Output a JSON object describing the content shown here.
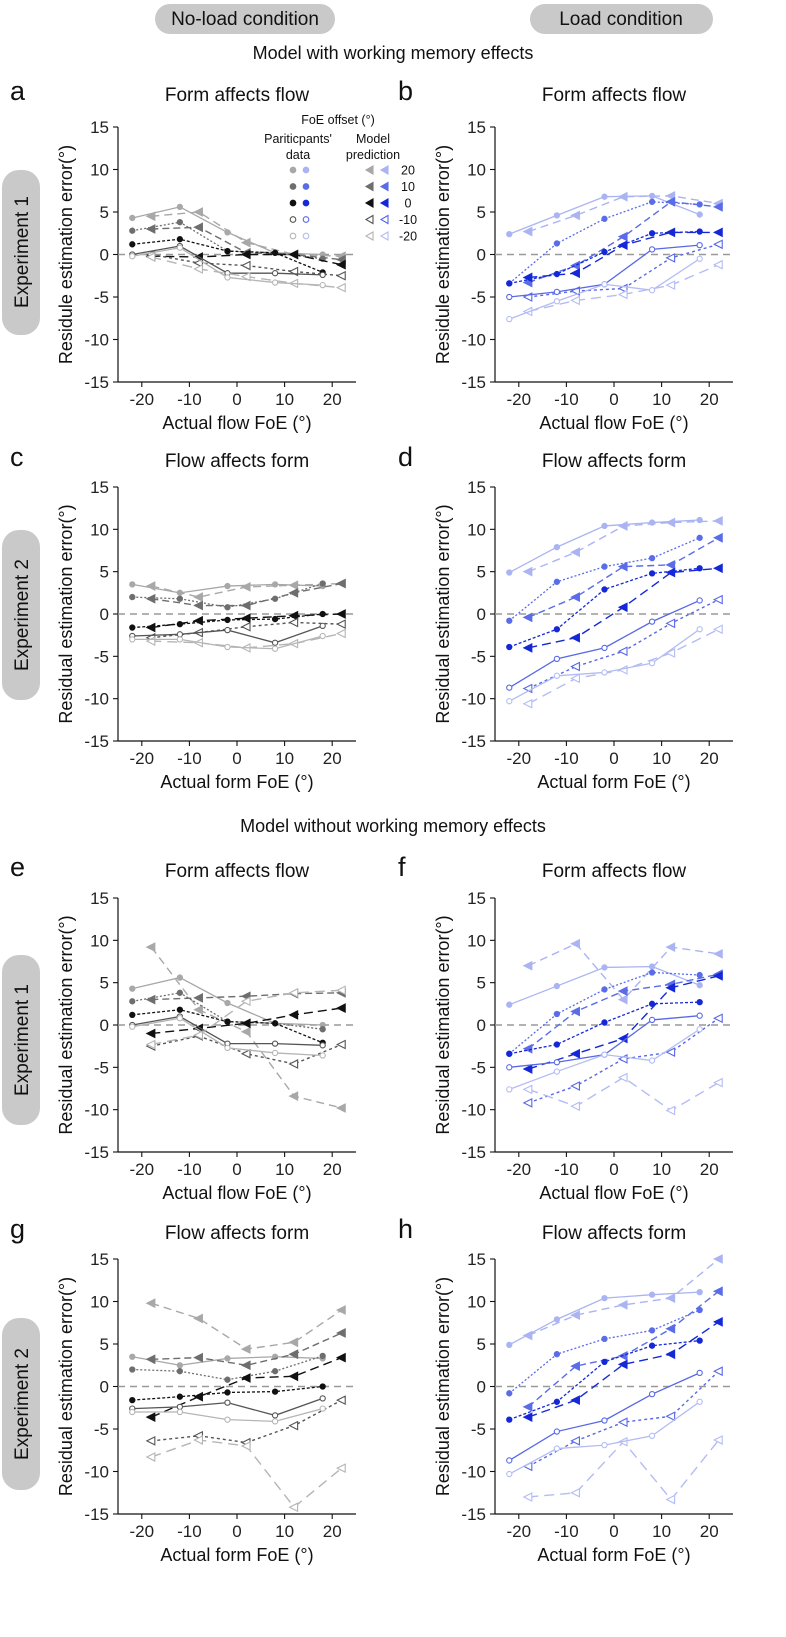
{
  "headers": {
    "no_load": "No-load condition",
    "load": "Load condition",
    "section_with": "Model with working memory effects",
    "section_without": "Model without working memory effects",
    "experiment1": "Experiment 1",
    "experiment2": "Experiment 2"
  },
  "legend": {
    "title": "FoE offset (°)",
    "col_participants": "Pariticpants' data",
    "col_model": "Model prediction",
    "offsets": [
      "20",
      "10",
      "0",
      "-10",
      "-20"
    ]
  },
  "colors": {
    "gray_levels": [
      "#a8a8a8",
      "#6e6e6e",
      "#111111",
      "#555555",
      "#b5b5b5"
    ],
    "blue_levels": [
      "#aab4f2",
      "#5a6ce8",
      "#1428d8",
      "#5868e6",
      "#b3bcf4"
    ],
    "gray_fill": [
      true,
      true,
      true,
      false,
      false
    ],
    "zero_line": "#999999"
  },
  "chart_data": [
    {
      "id": "a",
      "letter": "a",
      "title": "Form affects flow",
      "condition": "no-load",
      "palette": "gray",
      "type": "line",
      "xlabel": "Actual flow FoE (°)",
      "ylabel": "Residule estimation error(°)",
      "xlim": [
        -25,
        25
      ],
      "ylim": [
        -15,
        15
      ],
      "xticks": [
        -20,
        -10,
        0,
        10,
        20
      ],
      "yticks": [
        15,
        10,
        5,
        0,
        -5,
        -10,
        -15
      ],
      "data_x": [
        -22,
        -12,
        -2,
        8,
        18
      ],
      "model_x": [
        -18,
        -8,
        2,
        12,
        22
      ],
      "data": [
        [
          4.3,
          5.6,
          2.6,
          0.2,
          0.0
        ],
        [
          2.8,
          3.8,
          0.4,
          0.2,
          -0.5
        ],
        [
          1.2,
          1.8,
          0.4,
          0.2,
          -2.1
        ],
        [
          0.0,
          1.0,
          -2.2,
          -2.2,
          -2.4
        ],
        [
          -0.2,
          0.8,
          -2.7,
          -3.3,
          -3.6
        ]
      ],
      "model": [
        [
          4.5,
          5.0,
          1.4,
          0.0,
          -0.2
        ],
        [
          3.0,
          3.2,
          0.2,
          0.0,
          -0.6
        ],
        [
          -0.2,
          -0.3,
          0.0,
          0.0,
          -1.2
        ],
        [
          0.0,
          -1.0,
          -1.3,
          -2.0,
          -2.5
        ],
        [
          -0.3,
          -1.7,
          -2.6,
          -3.4,
          -3.9
        ]
      ],
      "show_legend": true
    },
    {
      "id": "b",
      "letter": "b",
      "title": "Form affects flow",
      "condition": "load",
      "palette": "blue",
      "type": "line",
      "xlabel": "Actual flow FoE (°)",
      "ylabel": "Residule estimation error(°)",
      "xlim": [
        -25,
        25
      ],
      "ylim": [
        -15,
        15
      ],
      "xticks": [
        -20,
        -10,
        0,
        10,
        20
      ],
      "yticks": [
        15,
        10,
        5,
        0,
        -5,
        -10,
        -15
      ],
      "data_x": [
        -22,
        -12,
        -2,
        8,
        18
      ],
      "model_x": [
        -18,
        -8,
        2,
        12,
        22
      ],
      "data": [
        [
          2.4,
          4.6,
          6.8,
          6.9,
          4.7
        ],
        [
          -3.4,
          1.3,
          4.2,
          6.2,
          5.9
        ],
        [
          -3.4,
          -2.3,
          0.3,
          2.5,
          2.7
        ],
        [
          -5.0,
          -4.4,
          -3.5,
          0.6,
          1.1
        ],
        [
          -7.6,
          -5.5,
          -3.5,
          -4.2,
          -0.5
        ]
      ],
      "model": [
        [
          2.7,
          4.6,
          6.8,
          6.9,
          6.0
        ],
        [
          -3.3,
          -1.3,
          2.1,
          6.2,
          5.6
        ],
        [
          -2.7,
          -2.2,
          1.1,
          2.6,
          2.6
        ],
        [
          -5.0,
          -4.3,
          -4.0,
          -0.4,
          1.2
        ],
        [
          -6.7,
          -5.4,
          -4.7,
          -3.6,
          -1.2
        ]
      ],
      "show_legend": false
    },
    {
      "id": "c",
      "letter": "c",
      "title": "Flow affects form",
      "condition": "no-load",
      "palette": "gray",
      "type": "line",
      "xlabel": "Actual form FoE (°)",
      "ylabel": "Residual estimation error(°)",
      "xlim": [
        -25,
        25
      ],
      "ylim": [
        -15,
        15
      ],
      "xticks": [
        -20,
        -10,
        0,
        10,
        20
      ],
      "yticks": [
        15,
        10,
        5,
        0,
        -5,
        -10,
        -15
      ],
      "data_x": [
        -22,
        -12,
        -2,
        8,
        18
      ],
      "model_x": [
        -18,
        -8,
        2,
        12,
        22
      ],
      "data": [
        [
          3.5,
          2.5,
          3.3,
          3.5,
          3.3
        ],
        [
          2.0,
          1.8,
          0.8,
          1.8,
          3.6
        ],
        [
          -1.6,
          -1.2,
          -0.7,
          -0.6,
          0.0
        ],
        [
          -2.6,
          -2.4,
          -1.9,
          -3.4,
          -1.4
        ],
        [
          -3.0,
          -3.0,
          -3.9,
          -4.1,
          -2.6
        ]
      ],
      "model": [
        [
          3.3,
          2.0,
          3.2,
          3.4,
          3.6
        ],
        [
          1.8,
          1.0,
          1.0,
          2.5,
          3.6
        ],
        [
          -1.6,
          -0.8,
          -0.5,
          -0.2,
          0.0
        ],
        [
          -2.8,
          -2.2,
          -1.5,
          -1.0,
          -1.2
        ],
        [
          -3.2,
          -3.4,
          -4.0,
          -3.5,
          -2.3
        ]
      ],
      "show_legend": false
    },
    {
      "id": "d",
      "letter": "d",
      "title": "Flow affects form",
      "condition": "load",
      "palette": "blue",
      "type": "line",
      "xlabel": "Actual form FoE (°)",
      "ylabel": "Residual estimation error(°)",
      "xlim": [
        -25,
        25
      ],
      "ylim": [
        -15,
        15
      ],
      "xticks": [
        -20,
        -10,
        0,
        10,
        20
      ],
      "yticks": [
        15,
        10,
        5,
        0,
        -5,
        -10,
        -15
      ],
      "data_x": [
        -22,
        -12,
        -2,
        8,
        18
      ],
      "model_x": [
        -18,
        -8,
        2,
        12,
        22
      ],
      "data": [
        [
          4.9,
          7.9,
          10.4,
          10.8,
          11.1
        ],
        [
          -0.8,
          3.8,
          5.6,
          6.6,
          9.0
        ],
        [
          -3.9,
          -1.8,
          2.9,
          4.8,
          5.4
        ],
        [
          -8.7,
          -5.3,
          -4.0,
          -0.9,
          1.6
        ],
        [
          -10.3,
          -7.3,
          -6.9,
          -5.8,
          -1.8
        ]
      ],
      "model": [
        [
          5.0,
          7.3,
          10.4,
          10.8,
          11.0
        ],
        [
          -0.4,
          2.0,
          5.6,
          5.8,
          9.0
        ],
        [
          -4.0,
          -2.8,
          0.8,
          4.9,
          5.4
        ],
        [
          -8.8,
          -6.2,
          -4.4,
          -1.1,
          1.7
        ],
        [
          -10.6,
          -7.6,
          -6.6,
          -4.6,
          -1.8
        ]
      ],
      "show_legend": false
    },
    {
      "id": "e",
      "letter": "e",
      "title": "Form affects flow",
      "condition": "no-load",
      "palette": "gray",
      "type": "line",
      "xlabel": "Actual flow FoE (°)",
      "ylabel": "Residual estimation error(°)",
      "xlim": [
        -25,
        25
      ],
      "ylim": [
        -15,
        15
      ],
      "xticks": [
        -20,
        -10,
        0,
        10,
        20
      ],
      "yticks": [
        15,
        10,
        5,
        0,
        -5,
        -10,
        -15
      ],
      "data_x": [
        -22,
        -12,
        -2,
        8,
        18
      ],
      "model_x": [
        -18,
        -8,
        2,
        12,
        22
      ],
      "data": [
        [
          4.3,
          5.6,
          2.6,
          0.2,
          0.0
        ],
        [
          2.8,
          3.8,
          0.4,
          0.2,
          -0.5
        ],
        [
          1.2,
          1.8,
          0.4,
          0.2,
          -2.1
        ],
        [
          0.0,
          1.0,
          -2.2,
          -2.2,
          -2.4
        ],
        [
          -0.2,
          0.8,
          -2.7,
          -3.3,
          -3.6
        ]
      ],
      "model": [
        [
          9.2,
          1.8,
          -0.8,
          -8.4,
          -9.8
        ],
        [
          3.0,
          3.2,
          3.4,
          3.7,
          3.8
        ],
        [
          -1.0,
          -0.4,
          0.2,
          1.2,
          2.0
        ],
        [
          -2.5,
          -1.3,
          -3.4,
          -4.6,
          -2.3
        ],
        [
          -2.3,
          -1.2,
          2.8,
          3.8,
          4.1
        ]
      ],
      "show_legend": false
    },
    {
      "id": "f",
      "letter": "f",
      "title": "Form affects flow",
      "condition": "load",
      "palette": "blue",
      "type": "line",
      "xlabel": "Actual flow FoE (°)",
      "ylabel": "Residual estimation error(°)",
      "xlim": [
        -25,
        25
      ],
      "ylim": [
        -15,
        15
      ],
      "xticks": [
        -20,
        -10,
        0,
        10,
        20
      ],
      "yticks": [
        15,
        10,
        5,
        0,
        -5,
        -10,
        -15
      ],
      "data_x": [
        -22,
        -12,
        -2,
        8,
        18
      ],
      "model_x": [
        -18,
        -8,
        2,
        12,
        22
      ],
      "data": [
        [
          2.4,
          4.6,
          6.8,
          6.9,
          4.7
        ],
        [
          -3.4,
          1.3,
          4.2,
          6.2,
          5.9
        ],
        [
          -3.4,
          -2.3,
          0.3,
          2.5,
          2.7
        ],
        [
          -5.0,
          -4.4,
          -3.5,
          0.6,
          1.1
        ],
        [
          -7.6,
          -5.5,
          -3.5,
          -4.2,
          -0.5
        ]
      ],
      "model": [
        [
          7.0,
          9.6,
          3.0,
          9.2,
          8.4
        ],
        [
          -2.8,
          1.6,
          4.0,
          4.8,
          6.0
        ],
        [
          -5.2,
          -3.4,
          -1.6,
          4.4,
          5.8
        ],
        [
          -9.2,
          -7.2,
          -4.0,
          -3.2,
          0.8
        ],
        [
          -7.6,
          -9.6,
          -6.2,
          -10.1,
          -6.8
        ]
      ],
      "show_legend": false
    },
    {
      "id": "g",
      "letter": "g",
      "title": "Flow affects form",
      "condition": "no-load",
      "palette": "gray",
      "type": "line",
      "xlabel": "Actual form FoE (°)",
      "ylabel": "Residual estimation error(°)",
      "xlim": [
        -25,
        25
      ],
      "ylim": [
        -15,
        15
      ],
      "xticks": [
        -20,
        -10,
        0,
        10,
        20
      ],
      "yticks": [
        15,
        10,
        5,
        0,
        -5,
        -10,
        -15
      ],
      "data_x": [
        -22,
        -12,
        -2,
        8,
        18
      ],
      "model_x": [
        -18,
        -8,
        2,
        12,
        22
      ],
      "data": [
        [
          3.5,
          2.5,
          3.3,
          3.5,
          3.3
        ],
        [
          2.0,
          1.8,
          0.8,
          1.8,
          3.6
        ],
        [
          -1.6,
          -1.2,
          -0.7,
          -0.6,
          0.0
        ],
        [
          -2.6,
          -2.4,
          -1.9,
          -3.4,
          -1.4
        ],
        [
          -3.0,
          -3.0,
          -3.9,
          -4.1,
          -2.6
        ]
      ],
      "model": [
        [
          9.8,
          8.0,
          4.4,
          5.2,
          9.0
        ],
        [
          3.2,
          3.4,
          2.5,
          3.8,
          6.3
        ],
        [
          -3.6,
          -1.2,
          1.0,
          1.2,
          3.4
        ],
        [
          -6.4,
          -5.8,
          -6.6,
          -4.6,
          -1.6
        ],
        [
          -8.3,
          -6.3,
          -7.0,
          -14.2,
          -9.6
        ]
      ],
      "show_legend": false
    },
    {
      "id": "h",
      "letter": "h",
      "title": "Flow affects form",
      "condition": "load",
      "palette": "blue",
      "type": "line",
      "xlabel": "Actual form FoE (°)",
      "ylabel": "Residual estimation error(°)",
      "xlim": [
        -25,
        25
      ],
      "ylim": [
        -15,
        15
      ],
      "xticks": [
        -20,
        -10,
        0,
        10,
        20
      ],
      "yticks": [
        15,
        10,
        5,
        0,
        -5,
        -10,
        -15
      ],
      "data_x": [
        -22,
        -12,
        -2,
        8,
        18
      ],
      "model_x": [
        -18,
        -8,
        2,
        12,
        22
      ],
      "data": [
        [
          4.9,
          7.9,
          10.4,
          10.8,
          11.1
        ],
        [
          -0.8,
          3.8,
          5.6,
          6.6,
          9.0
        ],
        [
          -3.9,
          -1.8,
          2.9,
          4.8,
          5.4
        ],
        [
          -8.7,
          -5.3,
          -4.0,
          -0.9,
          1.6
        ],
        [
          -10.3,
          -7.3,
          -6.9,
          -5.8,
          -1.8
        ]
      ],
      "model": [
        [
          6.0,
          8.4,
          9.6,
          10.4,
          15.0
        ],
        [
          -2.4,
          2.4,
          3.6,
          6.8,
          11.2
        ],
        [
          -3.6,
          -1.6,
          2.6,
          3.8,
          7.6
        ],
        [
          -9.4,
          -6.4,
          -4.2,
          -3.5,
          1.8
        ],
        [
          -13.0,
          -12.5,
          -6.5,
          -13.3,
          -6.3
        ]
      ],
      "show_legend": false
    }
  ]
}
